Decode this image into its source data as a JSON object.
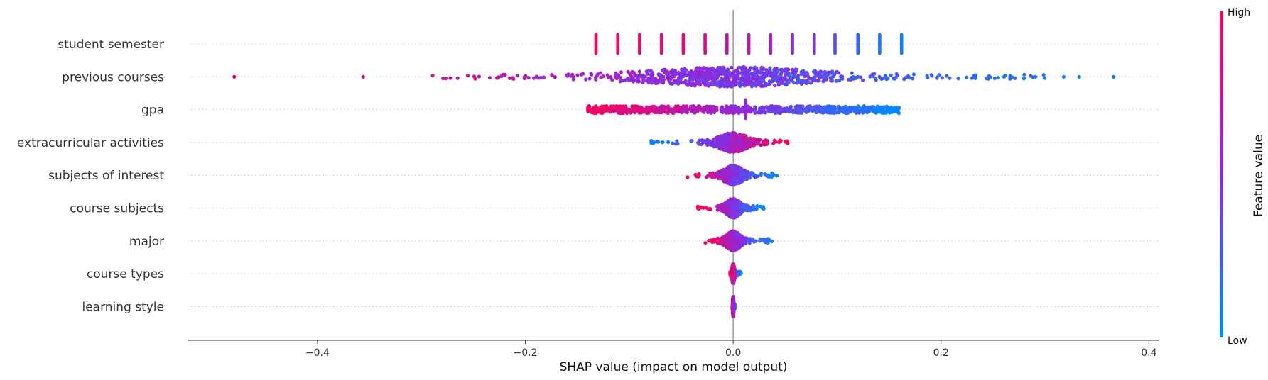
{
  "chart_data": {
    "type": "scatter",
    "title": "",
    "xlabel": "SHAP value (impact on model output)",
    "xlim": [
      -0.525,
      0.41
    ],
    "xticks": [
      -0.4,
      -0.2,
      0.0,
      0.2,
      0.4
    ],
    "xtick_labels": [
      "−0.4",
      "−0.2",
      "0.0",
      "0.2",
      "0.4"
    ],
    "colorbar": {
      "label": "Feature value",
      "high_label": "High",
      "low_label": "Low",
      "high_color": "#ff0052",
      "mid_color": "#8a2be2",
      "low_color": "#008bfb"
    },
    "features": [
      {
        "name": "student semester",
        "min": -0.132,
        "max": 0.162,
        "clusters": [
          {
            "x": -0.132,
            "v": 0.97
          },
          {
            "x": -0.111,
            "v": 0.95
          },
          {
            "x": -0.09,
            "v": 0.92
          },
          {
            "x": -0.069,
            "v": 0.88
          },
          {
            "x": -0.048,
            "v": 0.84
          },
          {
            "x": -0.027,
            "v": 0.8
          },
          {
            "x": -0.006,
            "v": 0.74
          },
          {
            "x": 0.015,
            "v": 0.68
          },
          {
            "x": 0.036,
            "v": 0.6
          },
          {
            "x": 0.057,
            "v": 0.52
          },
          {
            "x": 0.078,
            "v": 0.44
          },
          {
            "x": 0.098,
            "v": 0.32
          },
          {
            "x": 0.12,
            "v": 0.2
          },
          {
            "x": 0.141,
            "v": 0.12
          },
          {
            "x": 0.162,
            "v": 0.05
          }
        ]
      },
      {
        "name": "previous courses",
        "min": -0.48,
        "max": 0.366,
        "outliers": [
          {
            "x": -0.48,
            "v": 0.98
          },
          {
            "x": 0.366,
            "v": 0.04
          },
          {
            "x": 0.333,
            "v": 0.05
          },
          {
            "x": 0.318,
            "v": 0.05
          },
          {
            "x": 0.291,
            "v": 0.06
          },
          {
            "x": -0.356,
            "v": 0.95
          }
        ]
      },
      {
        "name": "gpa",
        "min": -0.14,
        "max": 0.16
      },
      {
        "name": "extracurricular activities",
        "min": -0.079,
        "max": 0.054
      },
      {
        "name": "subjects of interest",
        "min": -0.047,
        "max": 0.043
      },
      {
        "name": "course subjects",
        "min": -0.034,
        "max": 0.03
      },
      {
        "name": "major",
        "min": -0.029,
        "max": 0.038
      },
      {
        "name": "course types",
        "min": -0.003,
        "max": 0.008
      },
      {
        "name": "learning style",
        "min": -0.001,
        "max": 0.002
      }
    ]
  }
}
